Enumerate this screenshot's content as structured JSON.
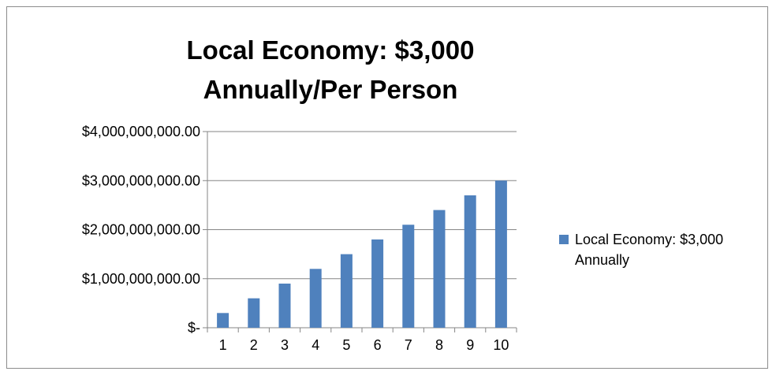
{
  "chart_data": {
    "type": "bar",
    "title": "Local Economy: $3,000 Annually/Per Person",
    "categories": [
      "1",
      "2",
      "3",
      "4",
      "5",
      "6",
      "7",
      "8",
      "9",
      "10"
    ],
    "series": [
      {
        "name": "Local Economy: $3,000 Annually",
        "values": [
          300000000,
          600000000,
          900000000,
          1200000000,
          1500000000,
          1800000000,
          2100000000,
          2400000000,
          2700000000,
          3000000000
        ],
        "color": "#4f81bd"
      }
    ],
    "ylim": [
      0,
      4000000000
    ],
    "y_ticks": [
      {
        "value": 0,
        "label": "$-"
      },
      {
        "value": 1000000000,
        "label": "$1,000,000,000.00"
      },
      {
        "value": 2000000000,
        "label": "$2,000,000,000.00"
      },
      {
        "value": 3000000000,
        "label": "$3,000,000,000.00"
      },
      {
        "value": 4000000000,
        "label": "$4,000,000,000.00"
      }
    ],
    "grid": true,
    "legend_position": "right"
  }
}
